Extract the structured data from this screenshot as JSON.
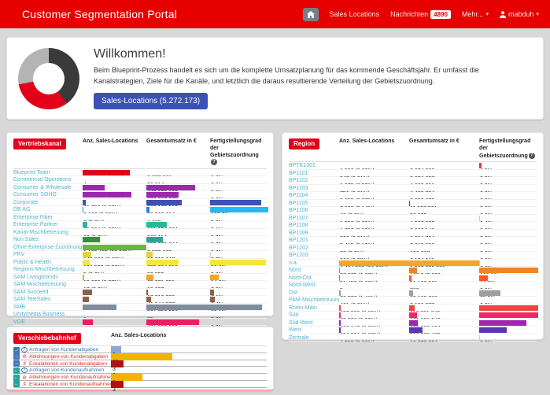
{
  "header": {
    "title": "Customer Segmentation Portal",
    "nav_sales": "Sales Locations",
    "nav_messages": "Nachrichten",
    "messages_count": "4890",
    "nav_more": "Mehr...",
    "user": "mabduh"
  },
  "welcome": {
    "title": "Willkommen!",
    "text": "Beim Blueprint-Prozess handelt es sich um die komplette Umsatzplanung für das kommende Geschäftsjahr. Er umfasst die Kanalstrategien, Ziele für die Kanäle, und letztlich die daraus resultierende Verteilung der Gebietszuordnung.",
    "button": "Sales-Locations (5.272.173)",
    "donut": {
      "segments": [
        {
          "label": "dark",
          "color": "#3a3a3a",
          "fraction": 0.4
        },
        {
          "label": "red",
          "color": "#e2001a",
          "fraction": 0.32
        },
        {
          "label": "gray",
          "color": "#b4b4b4",
          "fraction": 0.28
        }
      ]
    }
  },
  "tables": {
    "vertriebskanal": {
      "badge": "Vertriebskanal",
      "columns": [
        "Anz. Sales-Locations",
        "Gesamtumsatz in €",
        "Fertigstellungsgrad der Gebietszuordnung"
      ],
      "rows": [
        {
          "n": "Blueprint Team",
          "a": {
            "t": "822.880 (15.61%)",
            "f": 0.74,
            "c": "#e2001a",
            "w": true
          },
          "g": {
            "t": "3.277.961",
            "f": 0
          },
          "p": {
            "t": "0,0%",
            "f": 0
          }
        },
        {
          "n": "Commercial Operations",
          "a": {
            "t": "4",
            "f": 0
          },
          "g": {
            "t": "26.214",
            "f": 0
          },
          "p": {
            "t": "0,0%",
            "f": 0
          }
        },
        {
          "n": "Consumer & Wholesale",
          "a": {
            "t": "371.183 (7.04%)",
            "f": 0.34,
            "c": "#9c27b0",
            "w": true
          },
          "g": {
            "t": "447.033.198",
            "f": 0.76,
            "c": "#9c27b0"
          },
          "p": {
            "t": "0,0%",
            "f": 0
          }
        },
        {
          "n": "Consumer SOHO",
          "a": {
            "t": "841.474 (15.96%)",
            "f": 0.76,
            "c": "#9c27b0",
            "w": true
          },
          "g": {
            "t": "298.807.875",
            "f": 0.5,
            "c": "#9c27b0"
          },
          "p": {
            "t": "0,0%",
            "f": 0
          }
        },
        {
          "n": "Corporate",
          "a": {
            "t": "45.752 (0.87%)",
            "f": 0.045,
            "c": "#3f51b5"
          },
          "g": {
            "t": "323.178.512",
            "f": 0.55,
            "c": "#3f51b5"
          },
          "p": {
            "t": "88,3%",
            "f": 0.883,
            "c": "#3f51b5",
            "w": true
          }
        },
        {
          "n": "DB AG",
          "a": {
            "t": "3.122 (0.06%)",
            "f": 0.004,
            "c": "#1e88e5"
          },
          "g": {
            "t": "30.363.814",
            "f": 0.05,
            "c": "#1e88e5"
          },
          "p": {
            "t": "100,0%",
            "f": 1,
            "c": "#29b6f6"
          }
        },
        {
          "n": "Enterprise Fiber",
          "a": {
            "t": "8 (0.0%)",
            "f": 0
          },
          "g": {
            "t": "4.117",
            "f": 0
          },
          "p": {
            "t": "0,0%",
            "f": 0
          }
        },
        {
          "n": "Enterprise Partner",
          "a": {
            "t": "85.694 (1.63%)",
            "f": 0.08,
            "c": "#26b99a"
          },
          "g": {
            "t": "191.934.934",
            "f": 0.32,
            "c": "#26b99a"
          },
          "p": {
            "t": "0,1%",
            "f": 0.001
          }
        },
        {
          "n": "Kanal-Mischbetreuung",
          "a": {
            "t": "63 (0.0%)",
            "f": 0
          },
          "g": {
            "t": "520.114",
            "f": 0
          },
          "p": {
            "t": "0,0%",
            "f": 0
          }
        },
        {
          "n": "Non Sales",
          "a": {
            "t": "301.028 (5.71%)",
            "f": 0.27,
            "c": "#388e3c",
            "w": true
          },
          "g": {
            "t": "155.970.244",
            "f": 0.26,
            "c": "#26a69a"
          },
          "p": {
            "t": "0,0%",
            "f": 0
          }
        },
        {
          "n": "Ohne Enterprise-Zuordnung",
          "a": {
            "t": "1.105.405 (20.97%)",
            "f": 1,
            "c": "#6fb342"
          },
          "g": {
            "t": "2.572.662",
            "f": 0
          },
          "p": {
            "t": "0,0%",
            "f": 0
          }
        },
        {
          "n": "PRV",
          "a": {
            "t": "140.626 (2.67%)",
            "f": 0.13,
            "c": "#e0d43a"
          },
          "g": {
            "t": "60.710.847",
            "f": 0.1,
            "c": "#e0d43a"
          },
          "p": {
            "t": "0,7%",
            "f": 0.007
          }
        },
        {
          "n": "Public & Health",
          "a": {
            "t": "124.522 (2.36%)",
            "f": 0.11,
            "c": "#f7e53b"
          },
          "g": {
            "t": "295.264.316",
            "f": 0.5,
            "c": "#f7e53b"
          },
          "p": {
            "t": "96,6%",
            "f": 0.966,
            "c": "#f7e53b"
          }
        },
        {
          "n": "Regions-Mischbetreuung",
          "a": {
            "t": "5 (0.0%)",
            "f": 0
          },
          "g": {
            "t": "32.353",
            "f": 0
          },
          "p": {
            "t": "0,0%",
            "f": 0
          }
        },
        {
          "n": "SAM Livingbrands",
          "a": {
            "t": "19.620 (0.37%)",
            "f": 0.02,
            "c": "#f5a623"
          },
          "g": {
            "t": "65.971.251",
            "f": 0.11,
            "c": "#f5a623"
          },
          "p": {
            "t": "14,9%",
            "f": 0.149,
            "c": "#f5a623"
          }
        },
        {
          "n": "SAM Mischbetreuung",
          "a": {
            "t": "17 (0.0%)",
            "f": 0
          },
          "g": {
            "t": "19.697",
            "f": 0
          },
          "p": {
            "t": "0,0%",
            "f": 0
          }
        },
        {
          "n": "SAM Succeed",
          "a": {
            "t": "166.402 (3.16%)",
            "f": 0.15,
            "c": "#8d6248",
            "w": true
          },
          "g": {
            "t": "17.310.093",
            "f": 0.03,
            "c": "#8d6248"
          },
          "p": {
            "t": "7,1%",
            "f": 0.071,
            "c": "#8d6248"
          }
        },
        {
          "n": "SAM TeleSales",
          "a": {
            "t": "107.347 (2.04%)",
            "f": 0.1,
            "c": "#8d6248",
            "w": true
          },
          "g": {
            "t": "41.844.077",
            "f": 0.07,
            "c": "#8d6248"
          },
          "p": {
            "t": "8,4%",
            "f": 0.084,
            "c": "#8d6248"
          }
        },
        {
          "n": "SMB",
          "a": {
            "t": "591.343 (11.22%)",
            "f": 0.53,
            "c": "#7f8c9b",
            "w": true
          },
          "g": {
            "t": "591.752.336",
            "f": 1,
            "c": "#7f8c9b"
          },
          "p": {
            "t": "89,1%",
            "f": 0.891,
            "c": "#7f8c9b"
          }
        },
        {
          "n": "Unitymedia Business",
          "a": {
            "t": "1",
            "f": 0
          },
          "g": {
            "t": "35",
            "f": 0
          },
          "p": {
            "t": "0,0%",
            "f": 0
          }
        },
        {
          "n": "VGE",
          "a": {
            "t": "176.386 (3.35%)",
            "f": 0.16,
            "c": "#e91e63",
            "w": true
          },
          "g": {
            "t": "491.833.093",
            "f": 0.83,
            "c": "#e91e63"
          },
          "p": {
            "t": "0,0%",
            "f": 0
          }
        }
      ]
    },
    "region": {
      "badge": "Region",
      "columns": [
        "Anz. Sales-Locations",
        "Gesamtumsatz in €",
        "Fertigstellungsgrad der Gebietszuordnung"
      ],
      "rows": [
        {
          "n": "BPTK1301",
          "a": {
            "t": "1.590 (0.03%)",
            "f": 0
          },
          "g": {
            "t": "2.874.328",
            "f": 0
          },
          "p": {
            "t": "4,5%",
            "f": 0.045,
            "c": "#e53935"
          }
        },
        {
          "n": "BP1101",
          "a": {
            "t": "347 (0.01%)",
            "f": 0
          },
          "g": {
            "t": "2.074.657",
            "f": 0
          },
          "p": {
            "t": "0,0%",
            "f": 0
          }
        },
        {
          "n": "BP1102",
          "a": {
            "t": "1.373 (0.03%)",
            "f": 0
          },
          "g": {
            "t": "4.860.851",
            "f": 0
          },
          "p": {
            "t": "0,0%",
            "f": 0
          }
        },
        {
          "n": "BP1103",
          "a": {
            "t": "751 (0.01%)",
            "f": 0
          },
          "g": {
            "t": "4.430.794",
            "f": 0
          },
          "p": {
            "t": "0,0%",
            "f": 0
          }
        },
        {
          "n": "BP1104",
          "a": {
            "t": "3.655 (0.07%)",
            "f": 0
          },
          "g": {
            "t": "6.298.679",
            "f": 0
          },
          "p": {
            "t": "0,0%",
            "f": 0
          }
        },
        {
          "n": "BP1105",
          "a": {
            "t": "7.609 (0.14%)",
            "f": 0
          },
          "g": {
            "t": "11.907.961",
            "f": 0.008,
            "c": "#3f51b5"
          },
          "p": {
            "t": "0,0%",
            "f": 0
          }
        },
        {
          "n": "BP1106",
          "a": {
            "t": "40 (0.0%)",
            "f": 0
          },
          "g": {
            "t": "86.905",
            "f": 0
          },
          "p": {
            "t": "0,0%",
            "f": 0
          }
        },
        {
          "n": "BP1107",
          "a": {
            "t": "1.358 (0.03%)",
            "f": 0
          },
          "g": {
            "t": "4.527.393",
            "f": 0
          },
          "p": {
            "t": "0,4%",
            "f": 0.004
          }
        },
        {
          "n": "BP1108",
          "a": {
            "t": "1.707 (0.03%)",
            "f": 0
          },
          "g": {
            "t": "6.002.148",
            "f": 0
          },
          "p": {
            "t": "0,0%",
            "f": 0
          }
        },
        {
          "n": "BP1109",
          "a": {
            "t": "362 (0.01%)",
            "f": 0
          },
          "g": {
            "t": "1.604.704",
            "f": 0
          },
          "p": {
            "t": "0,0%",
            "f": 0
          }
        },
        {
          "n": "BP1201",
          "a": {
            "t": "5.419 (0.10%)",
            "f": 0
          },
          "g": {
            "t": "8.619.056",
            "f": 0
          },
          "p": {
            "t": "0,0%",
            "f": 0
          }
        },
        {
          "n": "BP1202",
          "a": {
            "t": "90 (0.0%)",
            "f": 0
          },
          "g": {
            "t": "190.812",
            "f": 0
          },
          "p": {
            "t": "0,0%",
            "f": 0
          }
        },
        {
          "n": "BP1203",
          "a": {
            "t": "910 (0.02%)",
            "f": 0
          },
          "g": {
            "t": "6.154.911",
            "f": 0
          },
          "p": {
            "t": "0,0%",
            "f": 0
          }
        },
        {
          "n": "n.a.",
          "a": {
            "t": "4.464.522 (84.68%)",
            "f": 1,
            "c": "#f5a623"
          },
          "g": {
            "t": "1.562.820.881",
            "f": 1,
            "c": "#f5a623"
          },
          "p": {
            "t": "0,6%",
            "f": 0.006
          }
        },
        {
          "n": "Nord",
          "a": {
            "t": "67.075 (1.27%)",
            "f": 0.015,
            "c": "#f58220"
          },
          "g": {
            "t": "169.940.208",
            "f": 0.11,
            "c": "#f58220"
          },
          "p": {
            "t": "100,0%",
            "f": 1,
            "c": "#f58220"
          }
        },
        {
          "n": "Nord-Ost",
          "a": {
            "t": "51.453 (0.98%)",
            "f": 0.012,
            "c": "#ff5722"
          },
          "g": {
            "t": "51.122.561",
            "f": 0.033,
            "c": "#ff5722"
          },
          "p": {
            "t": "14,5%",
            "f": 0.145,
            "c": "#ff5722"
          }
        },
        {
          "n": "Nord-West",
          "a": {
            "t": "5",
            "f": 0
          },
          "g": {
            "t": "763",
            "f": 0
          },
          "p": {
            "t": "0,0%",
            "f": 0
          }
        },
        {
          "n": "Ost",
          "a": {
            "t": "76.777 (1.46%)",
            "f": 0.017,
            "c": "#9e9e9e"
          },
          "g": {
            "t": "89.185.702",
            "f": 0.057,
            "c": "#9e9e9e"
          },
          "p": {
            "t": "35,5%",
            "f": 0.355,
            "c": "#9e9e9e"
          }
        },
        {
          "n": "PAM-Mischbetreuung",
          "a": {
            "t": "461 (0.01%)",
            "f": 0
          },
          "g": {
            "t": "2.136.077",
            "f": 0
          },
          "p": {
            "t": "0,0%",
            "f": 0
          }
        },
        {
          "n": "Rhein-Main",
          "a": {
            "t": "107.982 (2.05%)",
            "f": 0.024,
            "c": "#f4433c"
          },
          "g": {
            "t": "117.891.849",
            "f": 0.075,
            "c": "#f4433c"
          },
          "p": {
            "t": "100,0%",
            "f": 1,
            "c": "#f4433c",
            "w": true
          }
        },
        {
          "n": "Süd",
          "a": {
            "t": "89.221 (1.69%)",
            "f": 0.02,
            "c": "#ec2868"
          },
          "g": {
            "t": "171.991.943",
            "f": 0.11,
            "c": "#ec2868"
          },
          "p": {
            "t": "100,0%",
            "f": 1,
            "c": "#ec2868",
            "w": true
          }
        },
        {
          "n": "Süd-West",
          "a": {
            "t": "108.347 (2.06%)",
            "f": 0.024,
            "c": "#9c27b0"
          },
          "g": {
            "t": "193.893.154",
            "f": 0.124,
            "c": "#9c27b0"
          },
          "p": {
            "t": "80,6%",
            "f": 0.806,
            "c": "#9c27b0",
            "w": true
          }
        },
        {
          "n": "West",
          "a": {
            "t": "124.924 (2.37%)",
            "f": 0.028,
            "c": "#5e35b1"
          },
          "g": {
            "t": "296.383.470",
            "f": 0.19,
            "c": "#5e35b1"
          },
          "p": {
            "t": "47,3%",
            "f": 0.473,
            "c": "#5e35b1",
            "w": true
          }
        },
        {
          "n": "Zentrale",
          "a": {
            "t": "4.393 (0.08%)",
            "f": 0
          },
          "g": {
            "t": "10.772.824",
            "f": 0
          },
          "p": {
            "t": "0,3%",
            "f": 0.003
          }
        }
      ]
    },
    "verschiebebahnhof": {
      "badge": "Verschiebebahnhof",
      "column": "Anz. Sales-Locations",
      "arrow_colors": {
        "right": "#3f78b5",
        "left": "#2aa198"
      },
      "label_colors": {
        "blue": "#337ab7",
        "red": "#e0301e"
      },
      "rows": [
        {
          "dir": "right",
          "sym": "question",
          "label": "Anfragen von Kundenabgaben",
          "lc": "blue",
          "v": {
            "t": "2",
            "f": 0.065,
            "c": "#8da7d4"
          }
        },
        {
          "dir": "right",
          "sym": "ban",
          "label": "Ablehnungen von Kundenabgaben",
          "lc": "red",
          "v": {
            "t": "15",
            "f": 0.39,
            "c": "#f0b400"
          }
        },
        {
          "dir": "right",
          "sym": "sharp",
          "label": "Eskalationen von Kundenabgaben",
          "lc": "red",
          "v": {
            "t": "3",
            "f": 0.08,
            "c": "#b01116",
            "w": true
          }
        },
        {
          "dir": "left",
          "sym": "question",
          "label": "Anfragen von Kundenaufnahmen",
          "lc": "blue",
          "v": {
            "t": "0",
            "f": 0
          }
        },
        {
          "dir": "left",
          "sym": "ban",
          "label": "Ablehnungen von Kundenaufnahmen",
          "lc": "red",
          "v": {
            "t": "8",
            "f": 0.2,
            "c": "#f0b400"
          }
        },
        {
          "dir": "left",
          "sym": "sharp",
          "label": "Eskalationen von Kundenaufnahmen",
          "lc": "red",
          "v": {
            "t": "3",
            "f": 0.08,
            "c": "#b01116",
            "w": true
          }
        }
      ]
    }
  }
}
